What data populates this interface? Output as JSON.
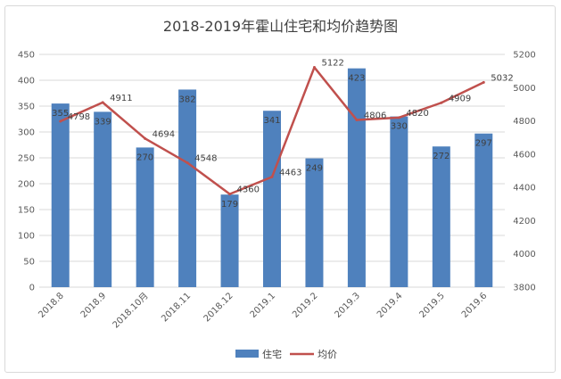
{
  "title": "2018-2019年霍山住宅和均价趋势图",
  "chart_data": {
    "type": "bar",
    "title": "2018-2019年霍山住宅和均价趋势图",
    "categories": [
      "2018.8",
      "2018.9",
      "2018.10月",
      "2018.11",
      "2018.12",
      "2019.1",
      "2019.2",
      "2019.3",
      "2019.4",
      "2019.5",
      "2019.6"
    ],
    "series": [
      {
        "name": "住宅",
        "type": "bar",
        "axis": "left",
        "color": "#4f81bd",
        "values": [
          355,
          339,
          270,
          382,
          179,
          341,
          249,
          423,
          330,
          272,
          297
        ],
        "labels": [
          "355",
          "339",
          "270",
          "382",
          "179",
          "341",
          "249",
          "423",
          "330",
          "272",
          "297"
        ]
      },
      {
        "name": "均价",
        "type": "line",
        "axis": "right",
        "color": "#c0504d",
        "values": [
          4798,
          4911,
          4694,
          4548,
          4360,
          4463,
          5122,
          4806,
          4820,
          4909,
          5032
        ],
        "labels": [
          "4798",
          "4911",
          "4694",
          "4548",
          "4360",
          "4463",
          "5122",
          "4806",
          "4820",
          "4909",
          "5032"
        ]
      }
    ],
    "y_left": {
      "min": 0,
      "max": 450,
      "step": 50,
      "ticks": [
        "0",
        "50",
        "100",
        "150",
        "200",
        "250",
        "300",
        "350",
        "400",
        "450"
      ]
    },
    "y_right": {
      "min": 3800,
      "max": 5200,
      "step": 200,
      "ticks": [
        "3800",
        "4000",
        "4200",
        "4400",
        "4600",
        "4800",
        "5000",
        "5200"
      ]
    },
    "grid": true,
    "legend_position": "bottom"
  }
}
